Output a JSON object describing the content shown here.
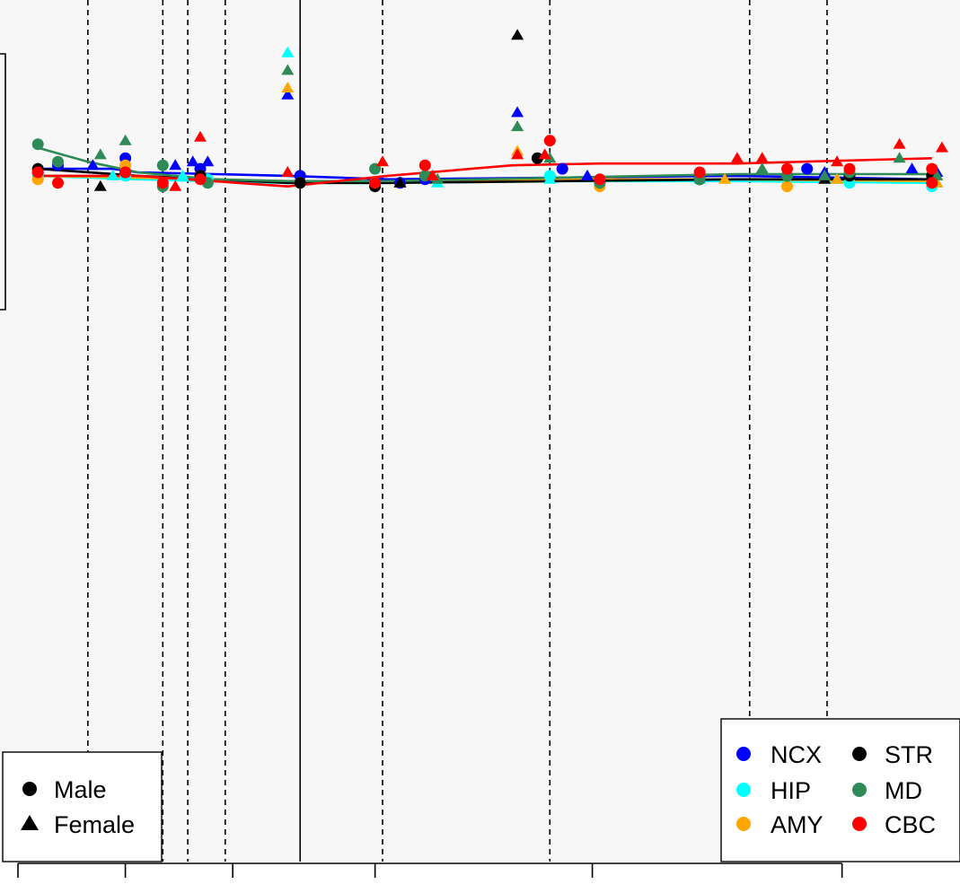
{
  "chart_data": {
    "type": "scatter",
    "title": "",
    "xlabel": "",
    "ylabel": "",
    "grid": false,
    "x_range": [
      -0.8,
      36.6
    ],
    "y_range": [
      -1.45,
      1.0
    ],
    "x_tick_positions": [
      -0.8,
      3.5,
      7.8,
      13.5,
      22.2,
      32.2
    ],
    "dashed_verticals": [
      2,
      5,
      6,
      7.5,
      13.8,
      20.5,
      28.5,
      31.6
    ],
    "solid_verticals": [
      10.5
    ],
    "colors": {
      "NCX": "#0000ff",
      "HIP": "#00ffff",
      "AMY": "#ffa500",
      "STR": "#000000",
      "MD": "#2e8b57",
      "CBC": "#ff0000"
    },
    "series": [
      {
        "name": "NCX",
        "color": "#0000ff",
        "trend": [
          [
            0,
            0.52
          ],
          [
            3,
            0.52
          ],
          [
            4,
            0.51
          ],
          [
            10,
            0.5
          ],
          [
            14,
            0.49
          ],
          [
            21,
            0.495
          ],
          [
            28,
            0.5
          ],
          [
            35.8,
            0.49
          ]
        ],
        "male": [
          [
            0,
            0.51
          ],
          [
            0.8,
            0.53
          ],
          [
            3.5,
            0.55
          ],
          [
            6.5,
            0.52
          ],
          [
            10.5,
            0.5
          ],
          [
            14.5,
            0.48
          ],
          [
            15.5,
            0.49
          ],
          [
            21,
            0.52
          ],
          [
            26.5,
            0.49
          ],
          [
            30.8,
            0.52
          ],
          [
            35.8,
            0.48
          ]
        ],
        "female": [
          [
            2.2,
            0.53
          ],
          [
            5.5,
            0.53
          ],
          [
            6.2,
            0.54
          ],
          [
            6.8,
            0.54
          ],
          [
            10,
            0.73
          ],
          [
            14.5,
            0.48
          ],
          [
            19.2,
            0.68
          ],
          [
            22,
            0.5
          ],
          [
            31.5,
            0.51
          ],
          [
            35,
            0.52
          ],
          [
            36,
            0.51
          ]
        ]
      },
      {
        "name": "HIP",
        "color": "#00ffff",
        "trend": [
          [
            0,
            0.5
          ],
          [
            4,
            0.49
          ],
          [
            7,
            0.485
          ],
          [
            10,
            0.48
          ],
          [
            14,
            0.48
          ],
          [
            21,
            0.485
          ],
          [
            28,
            0.485
          ],
          [
            35.8,
            0.48
          ]
        ],
        "male": [
          [
            0,
            0.5
          ],
          [
            3.5,
            0.5
          ],
          [
            6.8,
            0.49
          ],
          [
            10.5,
            0.48
          ],
          [
            13.5,
            0.48
          ],
          [
            20.5,
            0.5
          ],
          [
            26.5,
            0.49
          ],
          [
            32.5,
            0.48
          ],
          [
            35.8,
            0.47
          ]
        ],
        "female": [
          [
            3.0,
            0.5
          ],
          [
            5.8,
            0.5
          ],
          [
            10,
            0.85
          ],
          [
            16,
            0.48
          ],
          [
            20.5,
            0.49
          ],
          [
            26.5,
            0.49
          ],
          [
            32,
            0.49
          ],
          [
            36,
            0.48
          ]
        ]
      },
      {
        "name": "AMY",
        "color": "#ffa500",
        "trend": [
          [
            0,
            0.5
          ],
          [
            4,
            0.495
          ],
          [
            10,
            0.485
          ],
          [
            14,
            0.485
          ],
          [
            21,
            0.49
          ],
          [
            28,
            0.49
          ],
          [
            35.8,
            0.485
          ]
        ],
        "male": [
          [
            0,
            0.49
          ],
          [
            3.5,
            0.53
          ],
          [
            6.5,
            0.5
          ],
          [
            10.5,
            0.48
          ],
          [
            13.5,
            0.48
          ],
          [
            22.5,
            0.47
          ],
          [
            30,
            0.47
          ],
          [
            35.8,
            0.48
          ]
        ],
        "female": [
          [
            10,
            0.75
          ],
          [
            14.5,
            0.48
          ],
          [
            19.2,
            0.57
          ],
          [
            27.5,
            0.49
          ],
          [
            32,
            0.49
          ],
          [
            36,
            0.48
          ]
        ]
      },
      {
        "name": "STR",
        "color": "#000000",
        "trend": [
          [
            0,
            0.52
          ],
          [
            4,
            0.5
          ],
          [
            7,
            0.49
          ],
          [
            10,
            0.48
          ],
          [
            14,
            0.48
          ],
          [
            21,
            0.485
          ],
          [
            28,
            0.49
          ],
          [
            35.8,
            0.49
          ]
        ],
        "male": [
          [
            0,
            0.52
          ],
          [
            3.5,
            0.51
          ],
          [
            6.5,
            0.5
          ],
          [
            10.5,
            0.48
          ],
          [
            13.5,
            0.47
          ],
          [
            20,
            0.55
          ],
          [
            26.5,
            0.49
          ],
          [
            30,
            0.5
          ],
          [
            32.5,
            0.5
          ],
          [
            35.8,
            0.5
          ]
        ],
        "female": [
          [
            2.5,
            0.47
          ],
          [
            14.5,
            0.48
          ],
          [
            19.2,
            0.9
          ],
          [
            31.5,
            0.49
          ]
        ]
      },
      {
        "name": "MD",
        "color": "#2e8b57",
        "trend": [
          [
            0,
            0.58
          ],
          [
            2,
            0.54
          ],
          [
            4,
            0.51
          ],
          [
            7,
            0.49
          ],
          [
            10,
            0.485
          ],
          [
            14,
            0.485
          ],
          [
            21,
            0.495
          ],
          [
            28,
            0.505
          ],
          [
            35.8,
            0.505
          ]
        ],
        "male": [
          [
            0,
            0.59
          ],
          [
            0.8,
            0.54
          ],
          [
            5,
            0.53
          ],
          [
            5,
            0.47
          ],
          [
            6.8,
            0.48
          ],
          [
            13.5,
            0.52
          ],
          [
            15.5,
            0.5
          ],
          [
            22.5,
            0.48
          ],
          [
            26.5,
            0.49
          ],
          [
            30,
            0.5
          ],
          [
            32.5,
            0.51
          ]
        ],
        "female": [
          [
            2.5,
            0.56
          ],
          [
            3.5,
            0.6
          ],
          [
            10,
            0.8
          ],
          [
            16,
            0.49
          ],
          [
            19.2,
            0.64
          ],
          [
            20.5,
            0.55
          ],
          [
            29,
            0.52
          ],
          [
            31.5,
            0.5
          ],
          [
            34.5,
            0.55
          ],
          [
            36,
            0.5
          ]
        ]
      },
      {
        "name": "CBC",
        "color": "#ff0000",
        "trend": [
          [
            0,
            0.5
          ],
          [
            4,
            0.5
          ],
          [
            10,
            0.47
          ],
          [
            14,
            0.5
          ],
          [
            19,
            0.53
          ],
          [
            22.5,
            0.535
          ],
          [
            28,
            0.535
          ],
          [
            35.8,
            0.55
          ]
        ],
        "male": [
          [
            0,
            0.51
          ],
          [
            0.8,
            0.48
          ],
          [
            3.5,
            0.51
          ],
          [
            5,
            0.48
          ],
          [
            6.5,
            0.49
          ],
          [
            13.5,
            0.48
          ],
          [
            15.5,
            0.53
          ],
          [
            20.5,
            0.6
          ],
          [
            22.5,
            0.49
          ],
          [
            26.5,
            0.51
          ],
          [
            30,
            0.52
          ],
          [
            32.5,
            0.52
          ],
          [
            35.8,
            0.52
          ],
          [
            35.8,
            0.48
          ]
        ],
        "female": [
          [
            5.5,
            0.47
          ],
          [
            6.5,
            0.61
          ],
          [
            10,
            0.51
          ],
          [
            13.8,
            0.54
          ],
          [
            15.8,
            0.5
          ],
          [
            19.2,
            0.56
          ],
          [
            20.3,
            0.56
          ],
          [
            28,
            0.55
          ],
          [
            29,
            0.55
          ],
          [
            32,
            0.54
          ],
          [
            34.5,
            0.59
          ],
          [
            36.2,
            0.58
          ]
        ]
      }
    ]
  },
  "legend_sex": {
    "items": [
      {
        "label": "Male",
        "shape": "circle"
      },
      {
        "label": "Female",
        "shape": "triangle"
      }
    ]
  },
  "legend_region": {
    "items": [
      {
        "label": "NCX",
        "color": "#0000ff"
      },
      {
        "label": "STR",
        "color": "#000000"
      },
      {
        "label": "HIP",
        "color": "#00ffff"
      },
      {
        "label": "MD",
        "color": "#2e8b57"
      },
      {
        "label": "AMY",
        "color": "#ffa500"
      },
      {
        "label": "CBC",
        "color": "#ff0000"
      }
    ]
  }
}
